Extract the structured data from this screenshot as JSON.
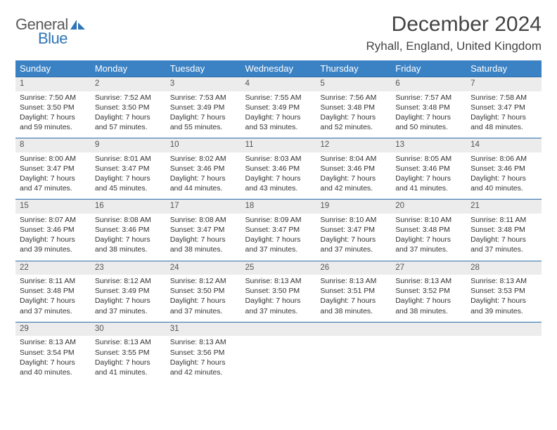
{
  "logo": {
    "text1": "General",
    "text2": "Blue"
  },
  "title": "December 2024",
  "location": "Ryhall, England, United Kingdom",
  "header_color": "#3b82c4",
  "daynum_bg": "#ececec",
  "rule_color": "#2e6da8",
  "weekdays": [
    "Sunday",
    "Monday",
    "Tuesday",
    "Wednesday",
    "Thursday",
    "Friday",
    "Saturday"
  ],
  "weeks": [
    [
      {
        "n": "1",
        "sr": "7:50 AM",
        "ss": "3:50 PM",
        "dl": "7 hours and 59 minutes."
      },
      {
        "n": "2",
        "sr": "7:52 AM",
        "ss": "3:50 PM",
        "dl": "7 hours and 57 minutes."
      },
      {
        "n": "3",
        "sr": "7:53 AM",
        "ss": "3:49 PM",
        "dl": "7 hours and 55 minutes."
      },
      {
        "n": "4",
        "sr": "7:55 AM",
        "ss": "3:49 PM",
        "dl": "7 hours and 53 minutes."
      },
      {
        "n": "5",
        "sr": "7:56 AM",
        "ss": "3:48 PM",
        "dl": "7 hours and 52 minutes."
      },
      {
        "n": "6",
        "sr": "7:57 AM",
        "ss": "3:48 PM",
        "dl": "7 hours and 50 minutes."
      },
      {
        "n": "7",
        "sr": "7:58 AM",
        "ss": "3:47 PM",
        "dl": "7 hours and 48 minutes."
      }
    ],
    [
      {
        "n": "8",
        "sr": "8:00 AM",
        "ss": "3:47 PM",
        "dl": "7 hours and 47 minutes."
      },
      {
        "n": "9",
        "sr": "8:01 AM",
        "ss": "3:47 PM",
        "dl": "7 hours and 45 minutes."
      },
      {
        "n": "10",
        "sr": "8:02 AM",
        "ss": "3:46 PM",
        "dl": "7 hours and 44 minutes."
      },
      {
        "n": "11",
        "sr": "8:03 AM",
        "ss": "3:46 PM",
        "dl": "7 hours and 43 minutes."
      },
      {
        "n": "12",
        "sr": "8:04 AM",
        "ss": "3:46 PM",
        "dl": "7 hours and 42 minutes."
      },
      {
        "n": "13",
        "sr": "8:05 AM",
        "ss": "3:46 PM",
        "dl": "7 hours and 41 minutes."
      },
      {
        "n": "14",
        "sr": "8:06 AM",
        "ss": "3:46 PM",
        "dl": "7 hours and 40 minutes."
      }
    ],
    [
      {
        "n": "15",
        "sr": "8:07 AM",
        "ss": "3:46 PM",
        "dl": "7 hours and 39 minutes."
      },
      {
        "n": "16",
        "sr": "8:08 AM",
        "ss": "3:46 PM",
        "dl": "7 hours and 38 minutes."
      },
      {
        "n": "17",
        "sr": "8:08 AM",
        "ss": "3:47 PM",
        "dl": "7 hours and 38 minutes."
      },
      {
        "n": "18",
        "sr": "8:09 AM",
        "ss": "3:47 PM",
        "dl": "7 hours and 37 minutes."
      },
      {
        "n": "19",
        "sr": "8:10 AM",
        "ss": "3:47 PM",
        "dl": "7 hours and 37 minutes."
      },
      {
        "n": "20",
        "sr": "8:10 AM",
        "ss": "3:48 PM",
        "dl": "7 hours and 37 minutes."
      },
      {
        "n": "21",
        "sr": "8:11 AM",
        "ss": "3:48 PM",
        "dl": "7 hours and 37 minutes."
      }
    ],
    [
      {
        "n": "22",
        "sr": "8:11 AM",
        "ss": "3:48 PM",
        "dl": "7 hours and 37 minutes."
      },
      {
        "n": "23",
        "sr": "8:12 AM",
        "ss": "3:49 PM",
        "dl": "7 hours and 37 minutes."
      },
      {
        "n": "24",
        "sr": "8:12 AM",
        "ss": "3:50 PM",
        "dl": "7 hours and 37 minutes."
      },
      {
        "n": "25",
        "sr": "8:13 AM",
        "ss": "3:50 PM",
        "dl": "7 hours and 37 minutes."
      },
      {
        "n": "26",
        "sr": "8:13 AM",
        "ss": "3:51 PM",
        "dl": "7 hours and 38 minutes."
      },
      {
        "n": "27",
        "sr": "8:13 AM",
        "ss": "3:52 PM",
        "dl": "7 hours and 38 minutes."
      },
      {
        "n": "28",
        "sr": "8:13 AM",
        "ss": "3:53 PM",
        "dl": "7 hours and 39 minutes."
      }
    ],
    [
      {
        "n": "29",
        "sr": "8:13 AM",
        "ss": "3:54 PM",
        "dl": "7 hours and 40 minutes."
      },
      {
        "n": "30",
        "sr": "8:13 AM",
        "ss": "3:55 PM",
        "dl": "7 hours and 41 minutes."
      },
      {
        "n": "31",
        "sr": "8:13 AM",
        "ss": "3:56 PM",
        "dl": "7 hours and 42 minutes."
      },
      {
        "n": "",
        "sr": "",
        "ss": "",
        "dl": ""
      },
      {
        "n": "",
        "sr": "",
        "ss": "",
        "dl": ""
      },
      {
        "n": "",
        "sr": "",
        "ss": "",
        "dl": ""
      },
      {
        "n": "",
        "sr": "",
        "ss": "",
        "dl": ""
      }
    ]
  ],
  "labels": {
    "sunrise": "Sunrise:",
    "sunset": "Sunset:",
    "daylight": "Daylight:"
  }
}
